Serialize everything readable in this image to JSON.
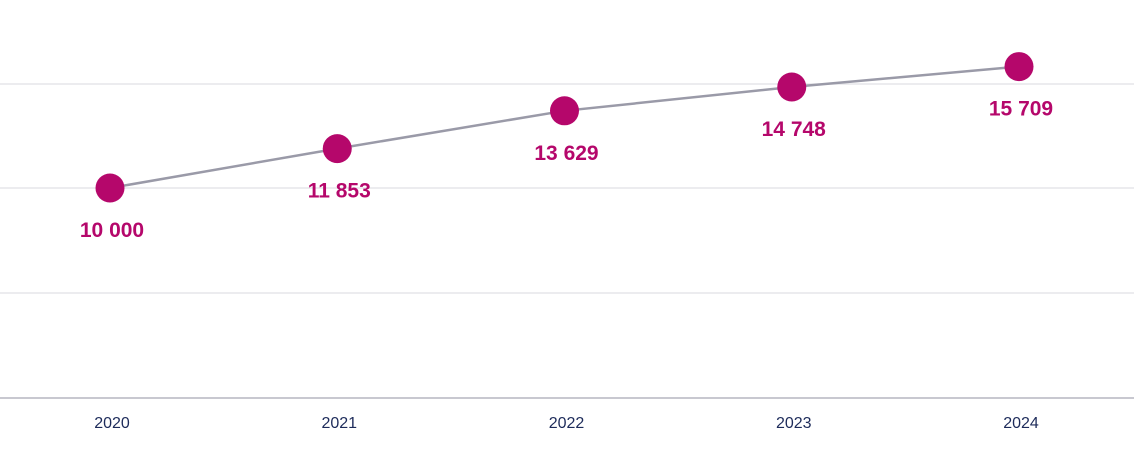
{
  "chart_data": {
    "type": "line",
    "title": "",
    "xlabel": "",
    "ylabel": "",
    "categories": [
      "2020",
      "2021",
      "2022",
      "2023",
      "2024"
    ],
    "values": [
      10000,
      11853,
      13629,
      14748,
      15709
    ],
    "value_labels": [
      "10 000",
      "11 853",
      "13 629",
      "14 748",
      "15 709"
    ],
    "grid": true,
    "legend": "none",
    "colors": {
      "marker": "#B5076B",
      "label": "#B5076B",
      "line": "#9A9AA8",
      "grid": "#E6E6EA",
      "axis": "#C8C8D0",
      "tick_text": "#1D2B5A"
    }
  }
}
